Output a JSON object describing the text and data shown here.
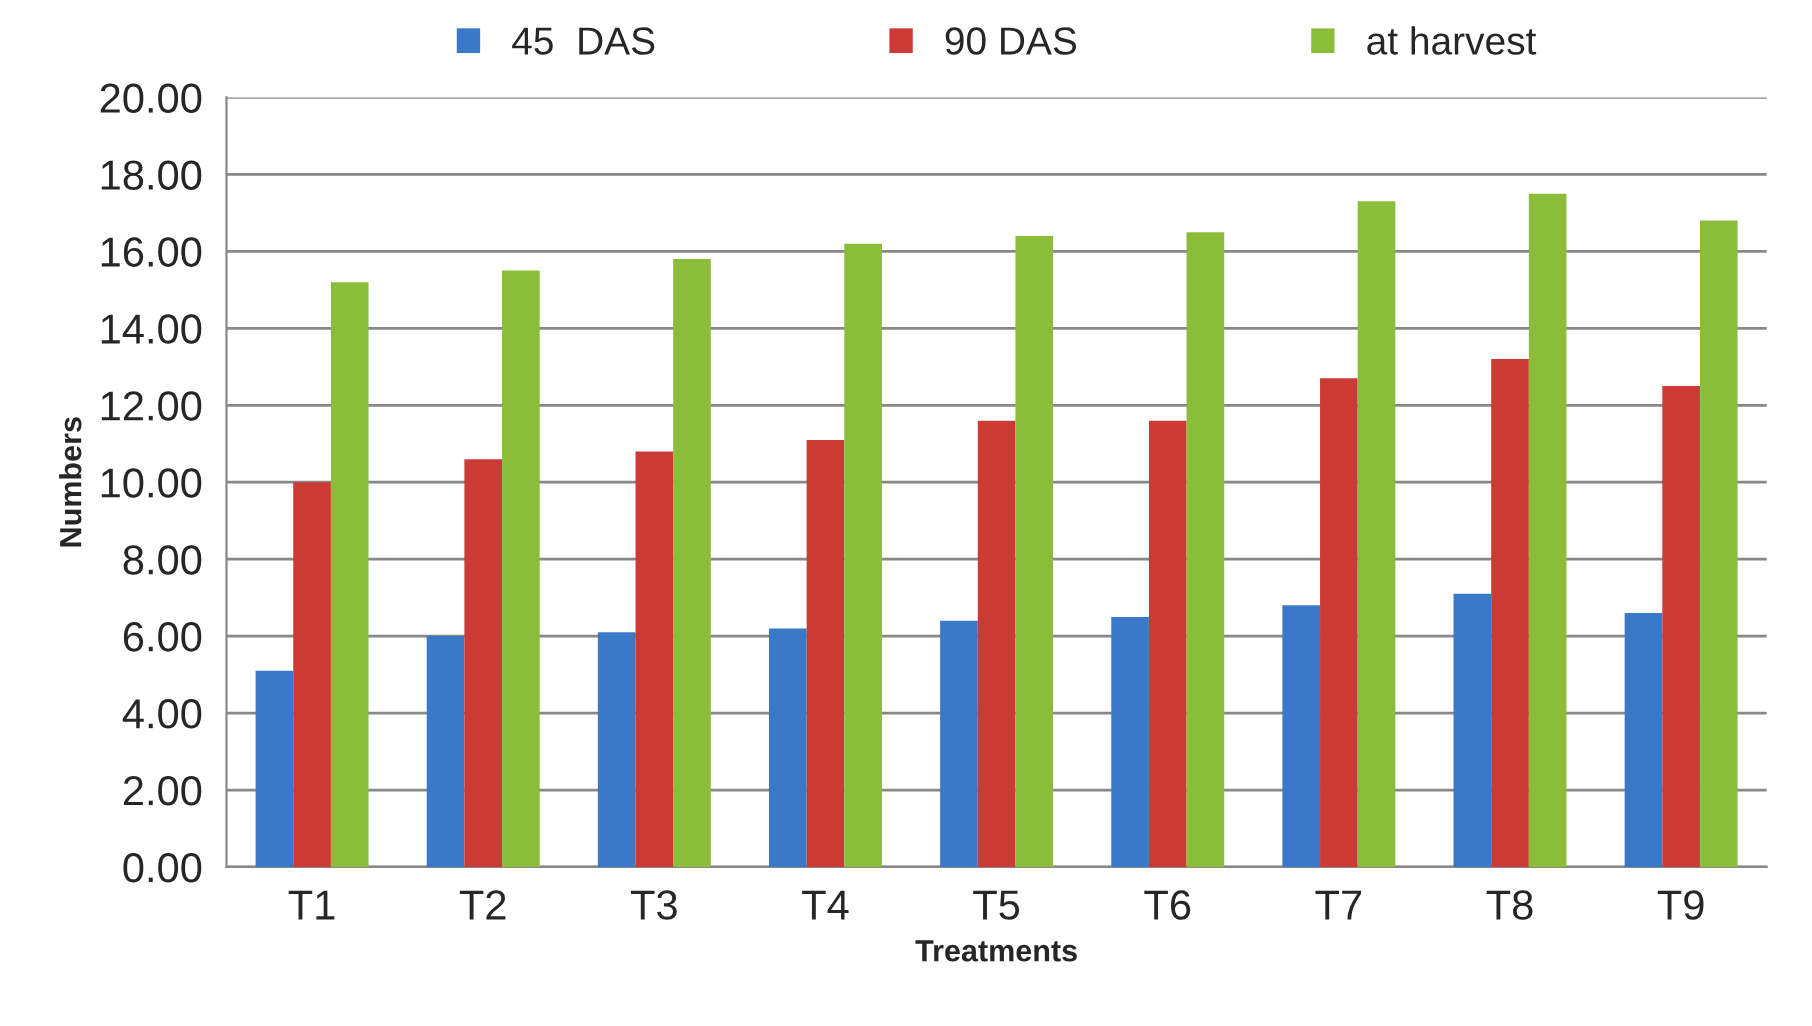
{
  "chart_data": {
    "type": "bar",
    "xlabel": "Treatments",
    "ylabel": "Numbers",
    "categories": [
      "T1",
      "T2",
      "T3",
      "T4",
      "T5",
      "T6",
      "T7",
      "T8",
      "T9"
    ],
    "series": [
      {
        "name": "45  DAS",
        "color": "#3a78c8",
        "values": [
          5.1,
          6.0,
          6.1,
          6.2,
          6.4,
          6.5,
          6.8,
          7.1,
          6.6
        ]
      },
      {
        "name": "90 DAS",
        "color": "#cc3a36",
        "values": [
          10.0,
          10.6,
          10.8,
          11.1,
          11.6,
          11.6,
          12.7,
          13.2,
          12.5
        ]
      },
      {
        "name": "at harvest",
        "color": "#8cbd3a",
        "values": [
          15.2,
          15.5,
          15.8,
          16.2,
          16.4,
          16.5,
          17.3,
          17.5,
          16.8
        ]
      }
    ],
    "ylim": [
      0,
      20
    ],
    "yticks": [
      {
        "value": 0,
        "label": "0.00"
      },
      {
        "value": 2,
        "label": "2.00"
      },
      {
        "value": 4,
        "label": "4.00"
      },
      {
        "value": 6,
        "label": "6.00"
      },
      {
        "value": 8,
        "label": "8.00"
      },
      {
        "value": 10,
        "label": "10.00"
      },
      {
        "value": 12,
        "label": "12.00"
      },
      {
        "value": 14,
        "label": "14.00"
      },
      {
        "value": 16,
        "label": "16.00"
      },
      {
        "value": 18,
        "label": "18.00"
      },
      {
        "value": 20,
        "label": "20.00"
      }
    ],
    "grid": "y",
    "legend": "top"
  }
}
